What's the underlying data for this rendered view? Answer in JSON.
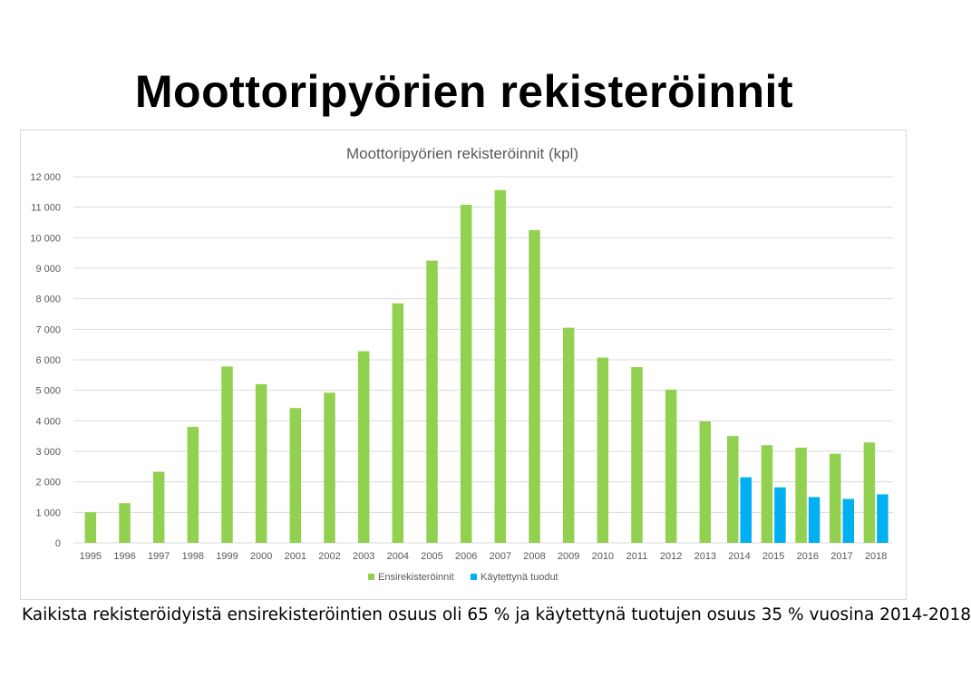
{
  "slide": {
    "title": "Moottoripyörien rekisteröinnit",
    "footnote": "Kaikista rekisteröidyistä ensirekisteröintien osuus oli 65 % ja käytettynä tuotujen osuus 35 % vuosina 2014-2018"
  },
  "colors": {
    "series_green": "#92d050",
    "series_blue": "#00b0f0",
    "grid": "#d9d9d9",
    "axis_text": "#595959"
  },
  "chart_data": {
    "type": "bar",
    "title": "Moottoripyörien rekisteröinnit (kpl)",
    "xlabel": "",
    "ylabel": "",
    "ylim": [
      0,
      12000
    ],
    "y_ticks": [
      0,
      1000,
      2000,
      3000,
      4000,
      5000,
      6000,
      7000,
      8000,
      9000,
      10000,
      11000,
      12000
    ],
    "y_tick_labels": [
      "0",
      "1 000",
      "2 000",
      "3 000",
      "4 000",
      "5 000",
      "6 000",
      "7 000",
      "8 000",
      "9 000",
      "10 000",
      "11 000",
      "12 000"
    ],
    "grid": true,
    "legend_position": "bottom",
    "categories": [
      "1995",
      "1996",
      "1997",
      "1998",
      "1999",
      "2000",
      "2001",
      "2002",
      "2003",
      "2004",
      "2005",
      "2006",
      "2007",
      "2008",
      "2009",
      "2010",
      "2011",
      "2012",
      "2013",
      "2014",
      "2015",
      "2016",
      "2017",
      "2018"
    ],
    "series": [
      {
        "name": "Ensirekisteröinnit",
        "color": "#92d050",
        "values": [
          1000,
          1300,
          2330,
          3800,
          5780,
          5200,
          4420,
          4920,
          6280,
          7850,
          9250,
          11080,
          11560,
          10250,
          7050,
          6070,
          5760,
          5020,
          3980,
          3500,
          3200,
          3120,
          2920,
          3290
        ]
      },
      {
        "name": "Käytettynä tuodut",
        "color": "#00b0f0",
        "values": [
          null,
          null,
          null,
          null,
          null,
          null,
          null,
          null,
          null,
          null,
          null,
          null,
          null,
          null,
          null,
          null,
          null,
          null,
          null,
          2150,
          1820,
          1500,
          1440,
          1590
        ]
      }
    ]
  }
}
